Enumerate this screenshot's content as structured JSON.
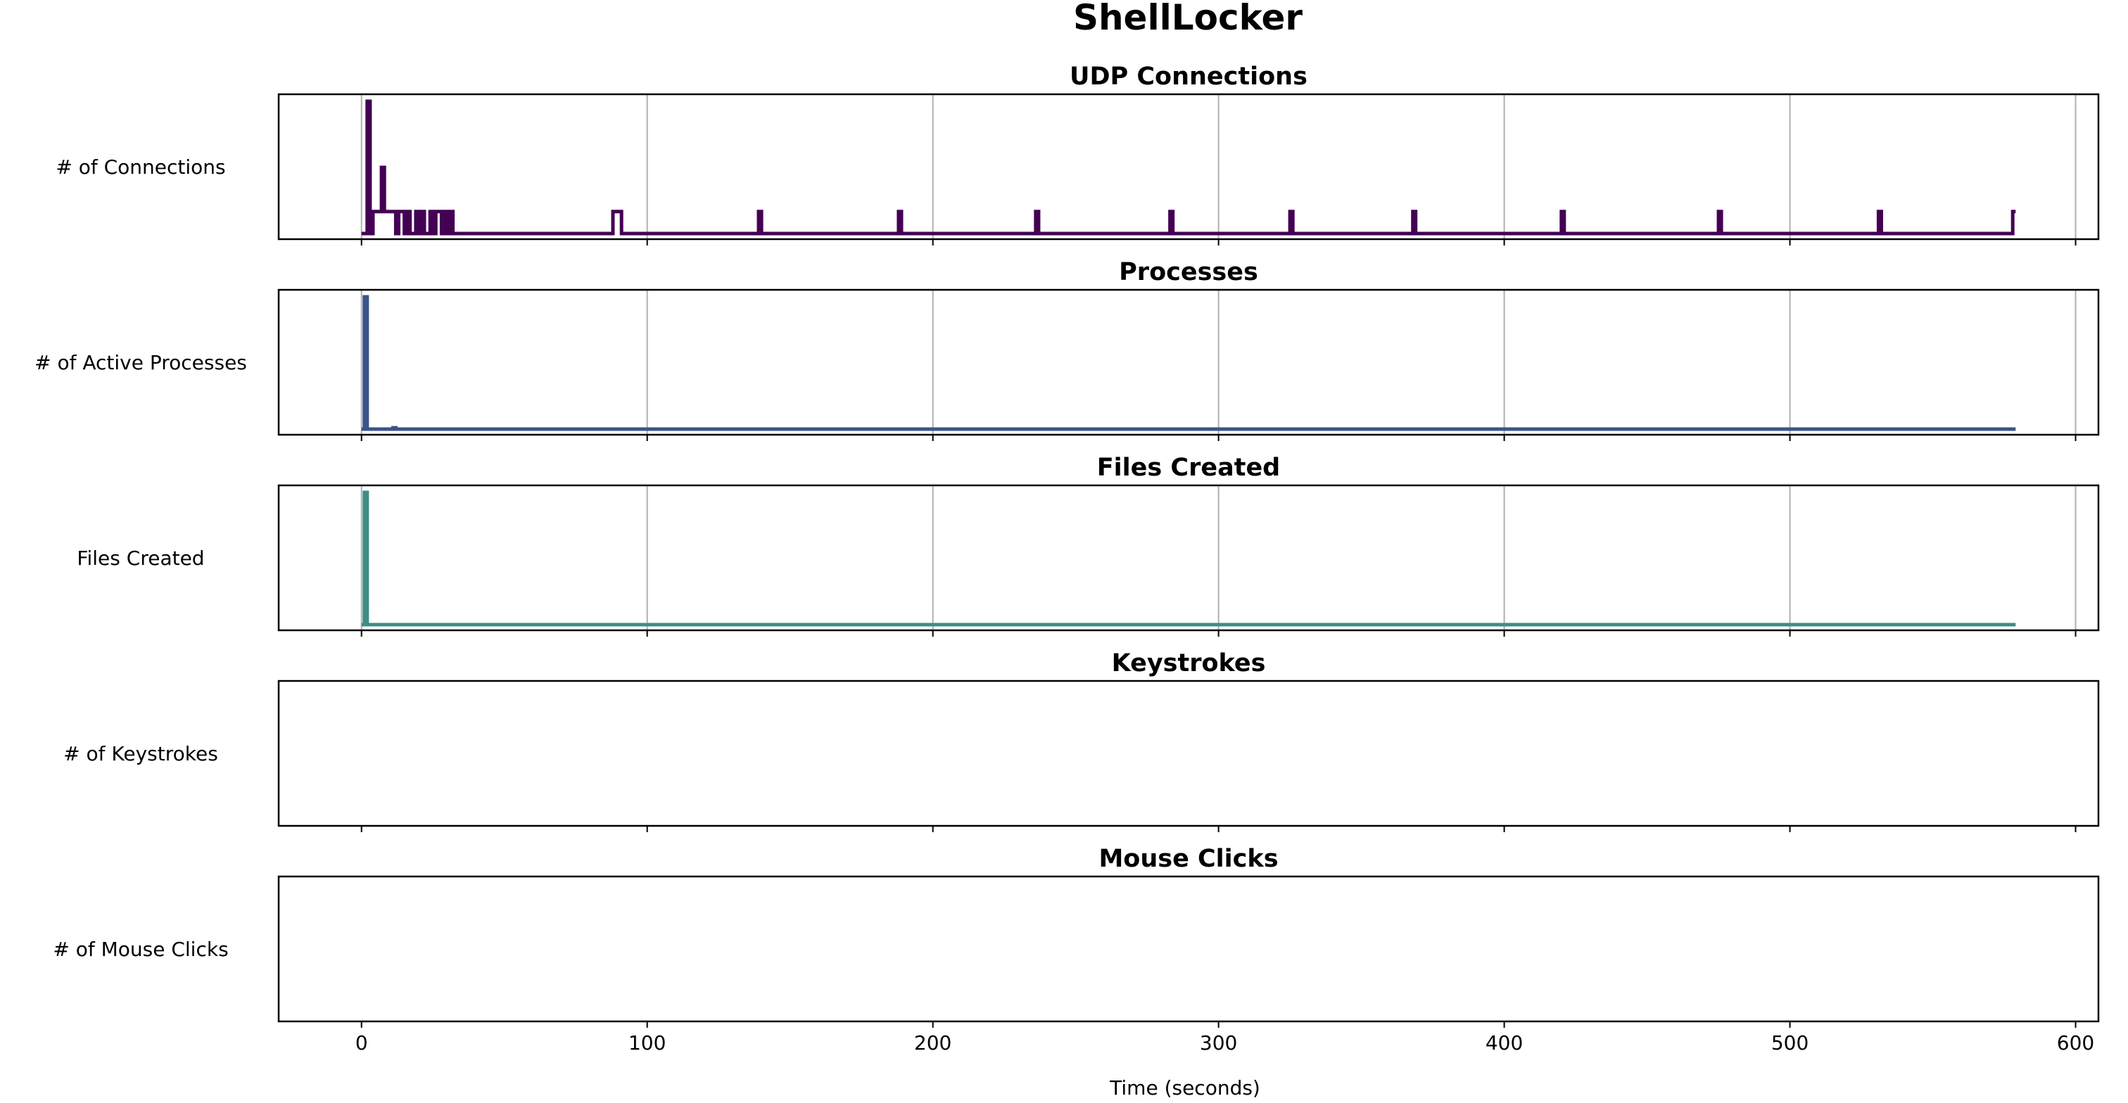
{
  "figure": {
    "title": "ShellLocker",
    "xlabel": "Time (seconds)"
  },
  "chart_data": [
    {
      "type": "line",
      "title": "UDP Connections",
      "ylabel": "# of Connections",
      "color": "#440154",
      "xlim": [
        -29,
        608
      ],
      "xticks": [
        0,
        100,
        200,
        300,
        400,
        500,
        600
      ],
      "grid": true,
      "series": [
        {
          "x": [
            0,
            2,
            2,
            3,
            3,
            4,
            4,
            7,
            7,
            8,
            8,
            12,
            12,
            13,
            13,
            15,
            15,
            16,
            16,
            17,
            17,
            19,
            19,
            20,
            20,
            21,
            21,
            22,
            22,
            24,
            24,
            25,
            25,
            26,
            26,
            28,
            28,
            29,
            29,
            30,
            30,
            31,
            31,
            32,
            32,
            88,
            88,
            91,
            91,
            139,
            139,
            140,
            140,
            188,
            188,
            189,
            189,
            236,
            236,
            237,
            237,
            283,
            283,
            284,
            284,
            325,
            325,
            326,
            326,
            368,
            368,
            369,
            369,
            420,
            420,
            421,
            421,
            475,
            475,
            476,
            476,
            531,
            531,
            532,
            532,
            578,
            578,
            579
          ],
          "values": [
            0,
            0,
            6,
            6,
            0,
            0,
            1,
            1,
            3,
            3,
            1,
            1,
            0,
            0,
            1,
            1,
            0,
            0,
            1,
            1,
            0,
            0,
            1,
            1,
            0,
            0,
            1,
            1,
            0,
            0,
            1,
            1,
            0,
            0,
            1,
            1,
            0,
            0,
            1,
            1,
            0,
            0,
            1,
            1,
            0,
            0,
            1,
            1,
            0,
            0,
            1,
            1,
            0,
            0,
            1,
            1,
            0,
            0,
            1,
            1,
            0,
            0,
            1,
            1,
            0,
            0,
            1,
            1,
            0,
            0,
            1,
            1,
            0,
            0,
            1,
            1,
            0,
            0,
            1,
            1,
            0,
            0,
            1,
            1,
            0,
            0,
            1,
            1
          ]
        }
      ]
    },
    {
      "type": "line",
      "title": "Processes",
      "ylabel": "# of Active Processes",
      "color": "#3b528b",
      "xlim": [
        -29,
        608
      ],
      "xticks": [
        0,
        100,
        200,
        300,
        400,
        500,
        600
      ],
      "grid": true,
      "series": [
        {
          "x": [
            0,
            1,
            1,
            2,
            2,
            11,
            11,
            12,
            12,
            579
          ],
          "values": [
            0,
            0,
            60,
            60,
            0,
            0,
            0.6,
            0.6,
            0,
            0
          ]
        }
      ]
    },
    {
      "type": "line",
      "title": "Files Created",
      "ylabel": "Files Created",
      "color": "#3e8d87",
      "xlim": [
        -29,
        608
      ],
      "xticks": [
        0,
        100,
        200,
        300,
        400,
        500,
        600
      ],
      "grid": true,
      "series": [
        {
          "x": [
            0,
            1,
            1,
            2,
            2,
            579
          ],
          "values": [
            0,
            0,
            60,
            60,
            0,
            0
          ]
        }
      ]
    },
    {
      "type": "line",
      "title": "Keystrokes",
      "ylabel": "# of Keystrokes",
      "color": "#21918c",
      "xlim": [
        -29,
        608
      ],
      "xticks": [
        0,
        100,
        200,
        300,
        400,
        500,
        600
      ],
      "grid": false,
      "series": []
    },
    {
      "type": "line",
      "title": "Mouse Clicks",
      "ylabel": "# of Mouse Clicks",
      "color": "#5ec962",
      "xlim": [
        -29,
        608
      ],
      "xticks": [
        0,
        100,
        200,
        300,
        400,
        500,
        600
      ],
      "grid": false,
      "show_tick_labels": true,
      "series": []
    }
  ]
}
